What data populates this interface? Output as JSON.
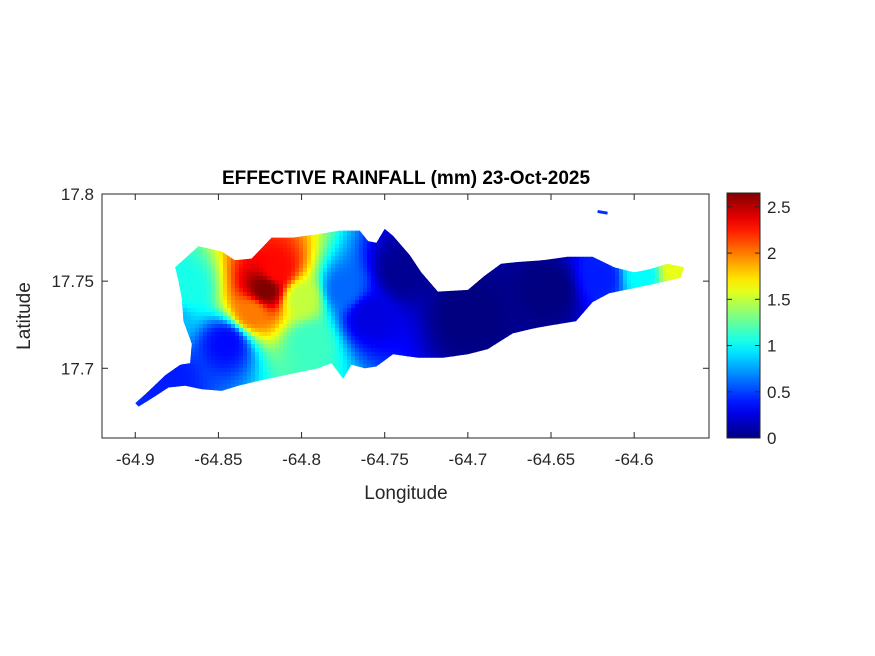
{
  "chart_data": {
    "type": "heatmap",
    "title": "EFFECTIVE RAINFALL (mm) 23-Oct-2025",
    "xlabel": "Longitude",
    "ylabel": "Latitude",
    "xlim": [
      -64.92,
      -64.555
    ],
    "ylim": [
      17.66,
      17.8
    ],
    "x_ticks": [
      -64.9,
      -64.85,
      -64.8,
      -64.75,
      -64.7,
      -64.65,
      -64.6
    ],
    "x_tick_labels": [
      "-64.9",
      "-64.85",
      "-64.8",
      "-64.75",
      "-64.7",
      "-64.65",
      "-64.6"
    ],
    "y_ticks": [
      17.7,
      17.75,
      17.8
    ],
    "y_tick_labels": [
      "17.7",
      "17.75",
      "17.8"
    ],
    "colorbar": {
      "colormap": "jet",
      "range": [
        0,
        2.65
      ],
      "ticks": [
        0,
        0.5,
        1,
        1.5,
        2,
        2.5
      ],
      "tick_labels": [
        "0",
        "0.5",
        "1",
        "1.5",
        "2",
        "2.5"
      ]
    },
    "island_outline": [
      [
        -64.9,
        17.68
      ],
      [
        -64.893,
        17.686
      ],
      [
        -64.882,
        17.696
      ],
      [
        -64.873,
        17.702
      ],
      [
        -64.867,
        17.703
      ],
      [
        -64.866,
        17.714
      ],
      [
        -64.871,
        17.727
      ],
      [
        -64.872,
        17.74
      ],
      [
        -64.874,
        17.75
      ],
      [
        -64.876,
        17.758
      ],
      [
        -64.862,
        17.77
      ],
      [
        -64.848,
        17.767
      ],
      [
        -64.84,
        17.762
      ],
      [
        -64.83,
        17.763
      ],
      [
        -64.818,
        17.775
      ],
      [
        -64.805,
        17.775
      ],
      [
        -64.79,
        17.777
      ],
      [
        -64.777,
        17.779
      ],
      [
        -64.765,
        17.779
      ],
      [
        -64.76,
        17.773
      ],
      [
        -64.755,
        17.772
      ],
      [
        -64.75,
        17.78
      ],
      [
        -64.745,
        17.776
      ],
      [
        -64.735,
        17.765
      ],
      [
        -64.728,
        17.755
      ],
      [
        -64.718,
        17.744
      ],
      [
        -64.7,
        17.745
      ],
      [
        -64.69,
        17.753
      ],
      [
        -64.68,
        17.76
      ],
      [
        -64.67,
        17.761
      ],
      [
        -64.655,
        17.762
      ],
      [
        -64.64,
        17.764
      ],
      [
        -64.625,
        17.764
      ],
      [
        -64.612,
        17.758
      ],
      [
        -64.6,
        17.755
      ],
      [
        -64.59,
        17.757
      ],
      [
        -64.58,
        17.76
      ],
      [
        -64.57,
        17.758
      ],
      [
        -64.572,
        17.752
      ],
      [
        -64.585,
        17.749
      ],
      [
        -64.6,
        17.746
      ],
      [
        -64.615,
        17.743
      ],
      [
        -64.625,
        17.738
      ],
      [
        -64.635,
        17.727
      ],
      [
        -64.648,
        17.725
      ],
      [
        -64.66,
        17.723
      ],
      [
        -64.673,
        17.72
      ],
      [
        -64.688,
        17.711
      ],
      [
        -64.7,
        17.708
      ],
      [
        -64.715,
        17.706
      ],
      [
        -64.73,
        17.706
      ],
      [
        -64.745,
        17.708
      ],
      [
        -64.755,
        17.701
      ],
      [
        -64.762,
        17.7
      ],
      [
        -64.77,
        17.702
      ],
      [
        -64.775,
        17.694
      ],
      [
        -64.782,
        17.703
      ],
      [
        -64.79,
        17.7
      ],
      [
        -64.8,
        17.698
      ],
      [
        -64.815,
        17.695
      ],
      [
        -64.825,
        17.693
      ],
      [
        -64.838,
        17.69
      ],
      [
        -64.848,
        17.687
      ],
      [
        -64.86,
        17.688
      ],
      [
        -64.87,
        17.69
      ],
      [
        -64.88,
        17.689
      ],
      [
        -64.888,
        17.684
      ],
      [
        -64.898,
        17.678
      ]
    ],
    "offshore_cay": [
      [
        -64.622,
        17.79
      ],
      [
        -64.616,
        17.789
      ]
    ],
    "rainfall_field": [
      {
        "lon": -64.822,
        "lat": 17.745,
        "value": 2.65
      },
      {
        "lon": -64.815,
        "lat": 17.756,
        "value": 2.3
      },
      {
        "lon": -64.83,
        "lat": 17.732,
        "value": 2.0
      },
      {
        "lon": -64.8,
        "lat": 17.74,
        "value": 1.5
      },
      {
        "lon": -64.795,
        "lat": 17.715,
        "value": 1.15
      },
      {
        "lon": -64.87,
        "lat": 17.745,
        "value": 1.05
      },
      {
        "lon": -64.88,
        "lat": 17.73,
        "value": 0.8
      },
      {
        "lon": -64.845,
        "lat": 17.715,
        "value": 0.35
      },
      {
        "lon": -64.88,
        "lat": 17.695,
        "value": 0.4
      },
      {
        "lon": -64.775,
        "lat": 17.745,
        "value": 0.6
      },
      {
        "lon": -64.76,
        "lat": 17.73,
        "value": 0.25
      },
      {
        "lon": -64.74,
        "lat": 17.755,
        "value": 0.05
      },
      {
        "lon": -64.7,
        "lat": 17.73,
        "value": 0.0
      },
      {
        "lon": -64.65,
        "lat": 17.745,
        "value": 0.0
      },
      {
        "lon": -64.62,
        "lat": 17.752,
        "value": 0.4
      },
      {
        "lon": -64.595,
        "lat": 17.754,
        "value": 1.0
      },
      {
        "lon": -64.575,
        "lat": 17.756,
        "value": 1.6
      }
    ]
  }
}
